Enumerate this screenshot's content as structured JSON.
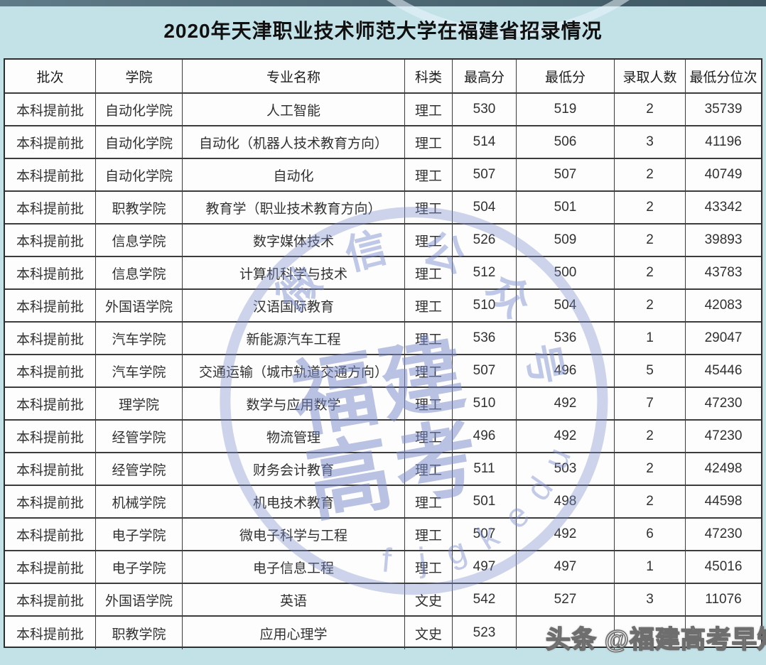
{
  "title": "2020年天津职业技术师范大学在福建省招录情况",
  "table": {
    "headers": [
      "批次",
      "学院",
      "专业名称",
      "科类",
      "最高分",
      "最低分",
      "录取人数",
      "最低分位次"
    ],
    "rows": [
      [
        "本科提前批",
        "自动化学院",
        "人工智能",
        "理工",
        "530",
        "519",
        "2",
        "35739"
      ],
      [
        "本科提前批",
        "自动化学院",
        "自动化（机器人技术教育方向）",
        "理工",
        "514",
        "506",
        "3",
        "41196"
      ],
      [
        "本科提前批",
        "自动化学院",
        "自动化",
        "理工",
        "507",
        "507",
        "2",
        "40749"
      ],
      [
        "本科提前批",
        "职教学院",
        "教育学（职业技术教育方向）",
        "理工",
        "504",
        "501",
        "2",
        "43342"
      ],
      [
        "本科提前批",
        "信息学院",
        "数字媒体技术",
        "理工",
        "526",
        "509",
        "2",
        "39893"
      ],
      [
        "本科提前批",
        "信息学院",
        "计算机科学与技术",
        "理工",
        "512",
        "500",
        "2",
        "43783"
      ],
      [
        "本科提前批",
        "外国语学院",
        "汉语国际教育",
        "理工",
        "510",
        "504",
        "2",
        "42083"
      ],
      [
        "本科提前批",
        "汽车学院",
        "新能源汽车工程",
        "理工",
        "536",
        "536",
        "1",
        "29047"
      ],
      [
        "本科提前批",
        "汽车学院",
        "交通运输（城市轨道交通方向）",
        "理工",
        "507",
        "496",
        "5",
        "45446"
      ],
      [
        "本科提前批",
        "理学院",
        "数学与应用数学",
        "理工",
        "510",
        "492",
        "7",
        "47230"
      ],
      [
        "本科提前批",
        "经管学院",
        "物流管理",
        "理工",
        "496",
        "492",
        "2",
        "47230"
      ],
      [
        "本科提前批",
        "经管学院",
        "财务会计教育",
        "理工",
        "511",
        "503",
        "2",
        "42498"
      ],
      [
        "本科提前批",
        "机械学院",
        "机电技术教育",
        "理工",
        "501",
        "498",
        "2",
        "44598"
      ],
      [
        "本科提前批",
        "电子学院",
        "微电子科学与工程",
        "理工",
        "507",
        "492",
        "6",
        "47230"
      ],
      [
        "本科提前批",
        "电子学院",
        "电子信息工程",
        "理工",
        "497",
        "497",
        "1",
        "45016"
      ],
      [
        "本科提前批",
        "外国语学院",
        "英语",
        "文史",
        "542",
        "527",
        "3",
        "11076"
      ],
      [
        "本科提前批",
        "职教学院",
        "应用心理学",
        "文史",
        "523",
        "",
        "",
        ""
      ]
    ]
  },
  "watermark": {
    "center_line1": "福建",
    "center_line2": "高考",
    "ring_text": "微信公众号",
    "latin_text": "fjgkedu"
  },
  "badge": "头条 @福建高考早知道",
  "colors": {
    "background": "#c3e2e8",
    "top_strip": "#4d6773",
    "table_border": "#3c3c3c",
    "cell_background": "#fdfdfd",
    "stamp_blue": "#7c8ece",
    "title_text": "#101010",
    "badge_fill": "#fbfbfb",
    "badge_outline": "#6e6e6e"
  }
}
